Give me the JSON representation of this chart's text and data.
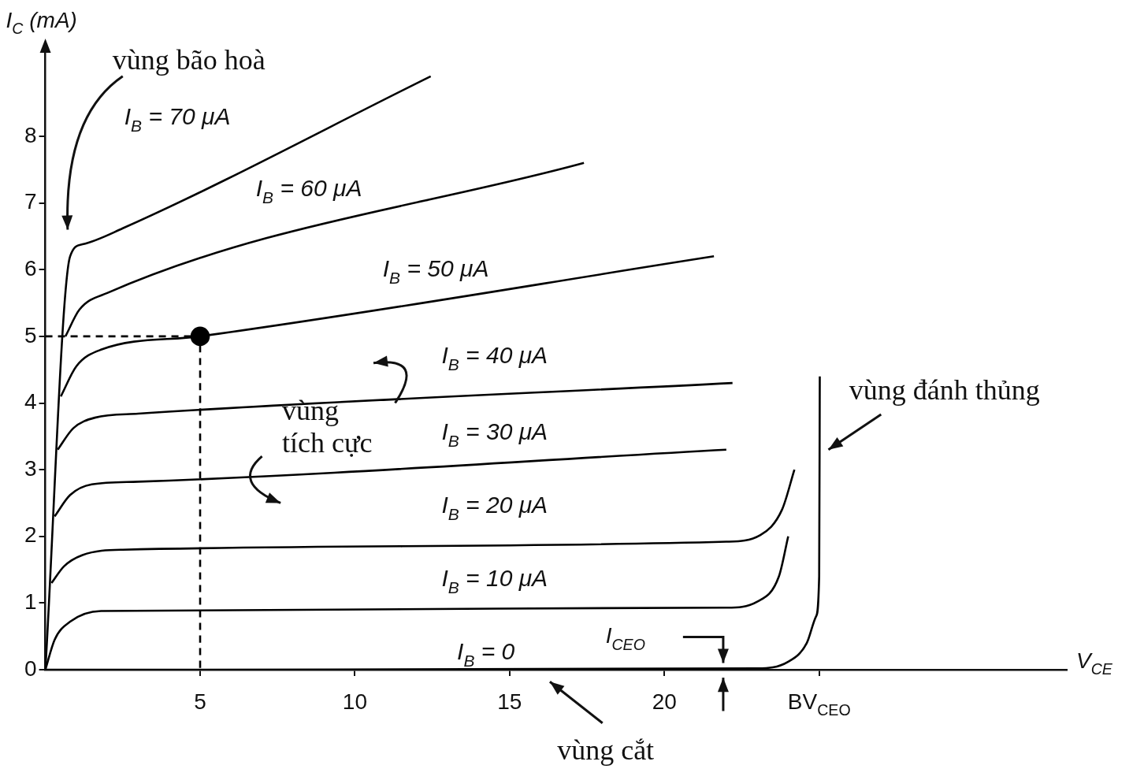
{
  "chart_data": {
    "type": "line",
    "xlabel": "V$_{CE}$",
    "ylabel": "I$_{C}$ (mA)",
    "xlim": [
      0,
      33
    ],
    "ylim": [
      0,
      9.3
    ],
    "xticks": [
      5,
      10,
      15,
      20,
      {
        "value": 25,
        "label": "BV$_{CEO}$"
      }
    ],
    "yticks": [
      0,
      1,
      2,
      3,
      4,
      5,
      6,
      7,
      8
    ],
    "legend": false,
    "marker": "none",
    "line_style": "solid",
    "annotations": [
      "vùng bão hoà",
      "vùng tích cực",
      "vùng đánh thủng",
      "vùng cắt",
      "I$_{CEO}$"
    ],
    "series": [
      {
        "name": "I$_{B}$ = 0",
        "color": "#000000",
        "x": [
          0,
          23,
          24,
          24.6,
          24.9,
          25,
          25.02
        ],
        "values": [
          0,
          0.02,
          0.12,
          0.4,
          0.8,
          1.4,
          4.4
        ]
      },
      {
        "name": "I$_{B}$ = 10 μA",
        "color": "#000000",
        "x": [
          0,
          0.3,
          0.8,
          1.8,
          22,
          23,
          23.7,
          24
        ],
        "values": [
          0,
          0.45,
          0.72,
          0.88,
          0.93,
          1.02,
          1.4,
          2.0
        ]
      },
      {
        "name": "I$_{B}$ = 20 μA",
        "color": "#000000",
        "x": [
          0.2,
          0.6,
          1.2,
          2.5,
          22,
          23.1,
          23.8,
          24.2
        ],
        "values": [
          1.3,
          1.55,
          1.72,
          1.8,
          1.92,
          2.02,
          2.4,
          3.0
        ]
      },
      {
        "name": "I$_{B}$ = 30 μA",
        "color": "#000000",
        "x": [
          0.3,
          0.8,
          1.5,
          3,
          22
        ],
        "values": [
          2.3,
          2.62,
          2.78,
          2.82,
          3.3
        ]
      },
      {
        "name": "I$_{B}$ = 40 μA",
        "color": "#000000",
        "x": [
          0.4,
          0.9,
          1.6,
          3,
          22.2
        ],
        "values": [
          3.3,
          3.62,
          3.78,
          3.84,
          4.3
        ]
      },
      {
        "name": "I$_{B}$ = 50 μA",
        "color": "#000000",
        "x": [
          0.5,
          1,
          1.8,
          5,
          21.6
        ],
        "values": [
          4.1,
          4.55,
          4.8,
          5,
          6.2
        ]
      },
      {
        "name": "I$_{B}$ = 60 μA",
        "color": "#000000",
        "x": [
          0.65,
          1.1,
          2,
          17.4
        ],
        "values": [
          5,
          5.4,
          5.65,
          7.6
        ]
      },
      {
        "name": "I$_{B}$ = 70 μA",
        "color": "#000000",
        "x": [
          0,
          0.8,
          1.2,
          2.5,
          12.45
        ],
        "values": [
          0,
          6.2,
          6.38,
          6.62,
          8.9
        ]
      },
      {
        "color": "#000000",
        "line_style": "dashed",
        "x": [
          0,
          5,
          5
        ],
        "values": [
          5,
          5,
          0
        ]
      },
      {
        "type": "scatter",
        "marker": "circle",
        "color": "#000000",
        "x": [
          5
        ],
        "values": [
          5
        ]
      }
    ]
  }
}
